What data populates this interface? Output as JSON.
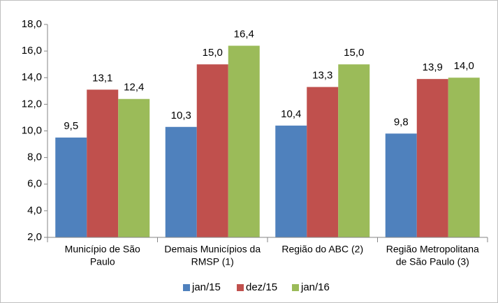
{
  "chart_data": {
    "type": "bar",
    "categories": [
      [
        "Município de São",
        "Paulo"
      ],
      [
        "Demais Municípios da",
        "RMSP (1)"
      ],
      [
        "Região do ABC (2)"
      ],
      [
        "Região Metropolitana",
        "de São Paulo (3)"
      ]
    ],
    "series": [
      {
        "name": "jan/15",
        "color": "#4f81bd",
        "values": [
          9.5,
          10.3,
          10.4,
          9.8
        ],
        "value_labels": [
          "9,5",
          "10,3",
          "10,4",
          "9,8"
        ]
      },
      {
        "name": "dez/15",
        "color": "#c0504d",
        "values": [
          13.1,
          15.0,
          13.3,
          13.9
        ],
        "value_labels": [
          "13,1",
          "15,0",
          "13,3",
          "13,9"
        ]
      },
      {
        "name": "jan/16",
        "color": "#9bbb59",
        "values": [
          12.4,
          16.4,
          15.0,
          14.0
        ],
        "value_labels": [
          "12,4",
          "16,4",
          "15,0",
          "14,0"
        ]
      }
    ],
    "ylim": [
      2,
      18
    ],
    "yticks": [
      {
        "value": 2,
        "label": "2,0"
      },
      {
        "value": 4,
        "label": "4,0"
      },
      {
        "value": 6,
        "label": "6,0"
      },
      {
        "value": 8,
        "label": "8,0"
      },
      {
        "value": 10,
        "label": "10,0"
      },
      {
        "value": 12,
        "label": "12,0"
      },
      {
        "value": 14,
        "label": "14,0"
      },
      {
        "value": 16,
        "label": "16,0"
      },
      {
        "value": 18,
        "label": "18,0"
      }
    ],
    "legend": "bottom"
  }
}
